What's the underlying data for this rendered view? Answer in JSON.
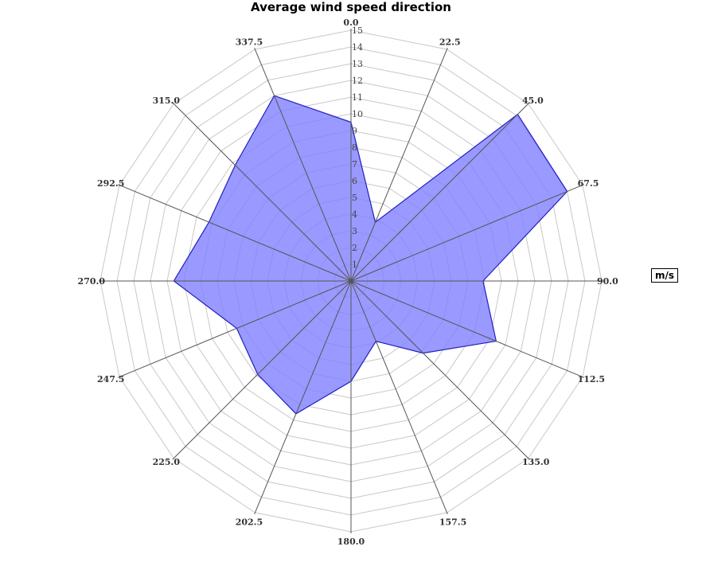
{
  "chart_data": {
    "type": "radar",
    "title": "Average wind speed direction",
    "unit_legend": "m/s",
    "categories": [
      "0.0",
      "22.5",
      "45.0",
      "67.5",
      "90.0",
      "112.5",
      "135.0",
      "157.5",
      "180.0",
      "202.5",
      "225.0",
      "247.5",
      "270.0",
      "292.5",
      "315.0",
      "337.5"
    ],
    "series": [
      {
        "name": "m/s",
        "values": [
          9.5,
          3.8,
          14.1,
          14.0,
          7.9,
          9.4,
          6.1,
          3.9,
          6.0,
          8.6,
          7.9,
          7.4,
          10.6,
          9.2,
          9.8,
          12.0
        ]
      }
    ],
    "radial_ticks": [
      1,
      2,
      3,
      4,
      5,
      6,
      7,
      8,
      9,
      10,
      11,
      12,
      13,
      14,
      15
    ],
    "rlim": [
      0,
      15
    ],
    "grid": true,
    "legend_position": "right",
    "colors": {
      "fill": "#8080ff",
      "fill_opacity": 0.8,
      "stroke": "#2020c0",
      "grid": "#c8c8c8",
      "spoke": "#555555"
    }
  }
}
